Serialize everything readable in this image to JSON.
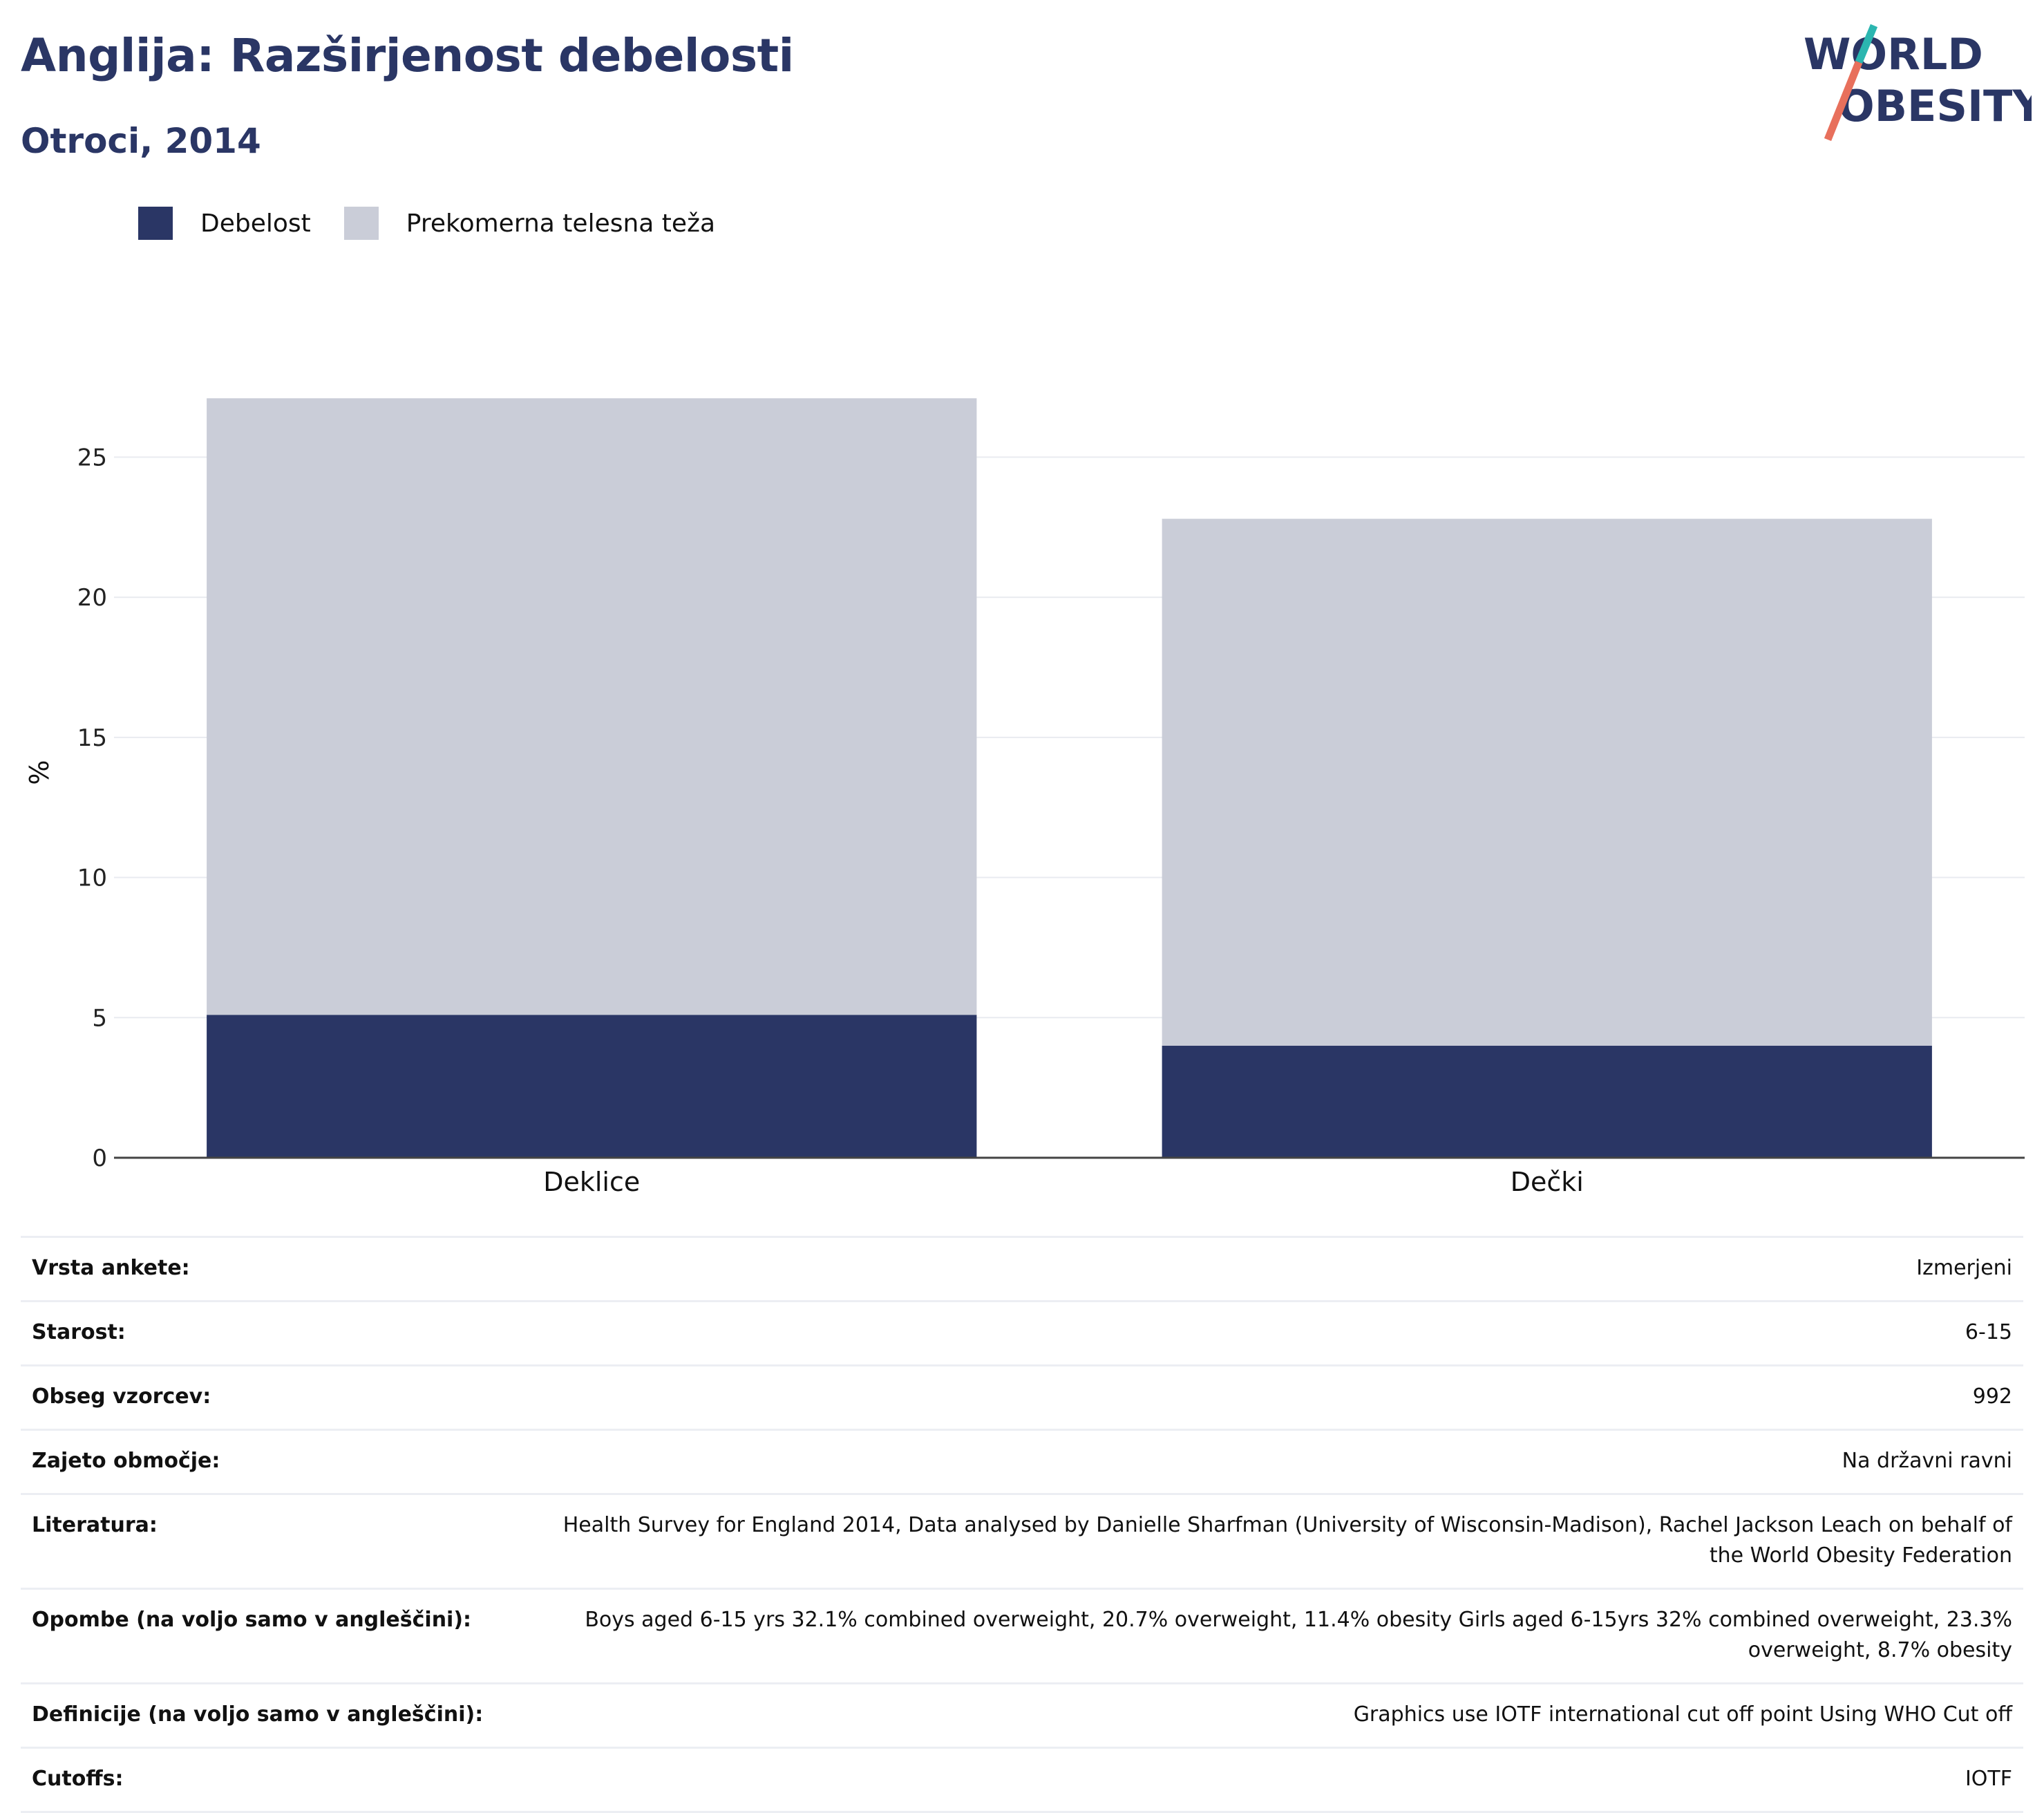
{
  "header": {
    "title": "Anglija: Razširjenost debelosti",
    "subtitle": "Otroci, 2014"
  },
  "logo": {
    "line1": "WORLD",
    "line2": "OBESITY",
    "colors": {
      "text": "#2a3665",
      "slash_top": "#2bb6b0",
      "slash_bottom": "#e8705c"
    }
  },
  "legend": [
    {
      "label": "Debelost",
      "color": "#2a3665"
    },
    {
      "label": "Prekomerna telesna teža",
      "color": "#cacdd8"
    }
  ],
  "chart_data": {
    "type": "bar",
    "stacked": true,
    "categories": [
      "Deklice",
      "Dečki"
    ],
    "series": [
      {
        "name": "Debelost",
        "color": "#2a3665",
        "values": [
          5.1,
          4.0
        ]
      },
      {
        "name": "Prekomerna telesna teža",
        "color": "#cacdd8",
        "values": [
          22.0,
          18.8
        ]
      }
    ],
    "ylabel": "%",
    "ylim": [
      0,
      27.5
    ],
    "yticks": [
      0,
      5,
      10,
      15,
      20,
      25
    ],
    "grid": true,
    "legend_position": "top-left"
  },
  "info": [
    {
      "label": "Vrsta ankete:",
      "value": "Izmerjeni"
    },
    {
      "label": "Starost:",
      "value": "6-15"
    },
    {
      "label": "Obseg vzorcev:",
      "value": "992"
    },
    {
      "label": "Zajeto območje:",
      "value": "Na državni ravni"
    },
    {
      "label": "Literatura:",
      "value": "Health Survey for England 2014, Data analysed by Danielle Sharfman (University of Wisconsin-Madison), Rachel Jackson Leach on behalf of the World Obesity Federation"
    },
    {
      "label": "Opombe (na voljo samo v angleščini):",
      "value": "Boys aged 6-15 yrs 32.1% combined overweight, 20.7% overweight, 11.4% obesity Girls aged 6-15yrs 32% combined overweight, 23.3% overweight, 8.7% obesity"
    },
    {
      "label": "Definicije (na voljo samo v angleščini):",
      "value": "Graphics use IOTF international cut off point Using WHO Cut off"
    },
    {
      "label": "Cutoffs:",
      "value": "IOTF"
    }
  ]
}
